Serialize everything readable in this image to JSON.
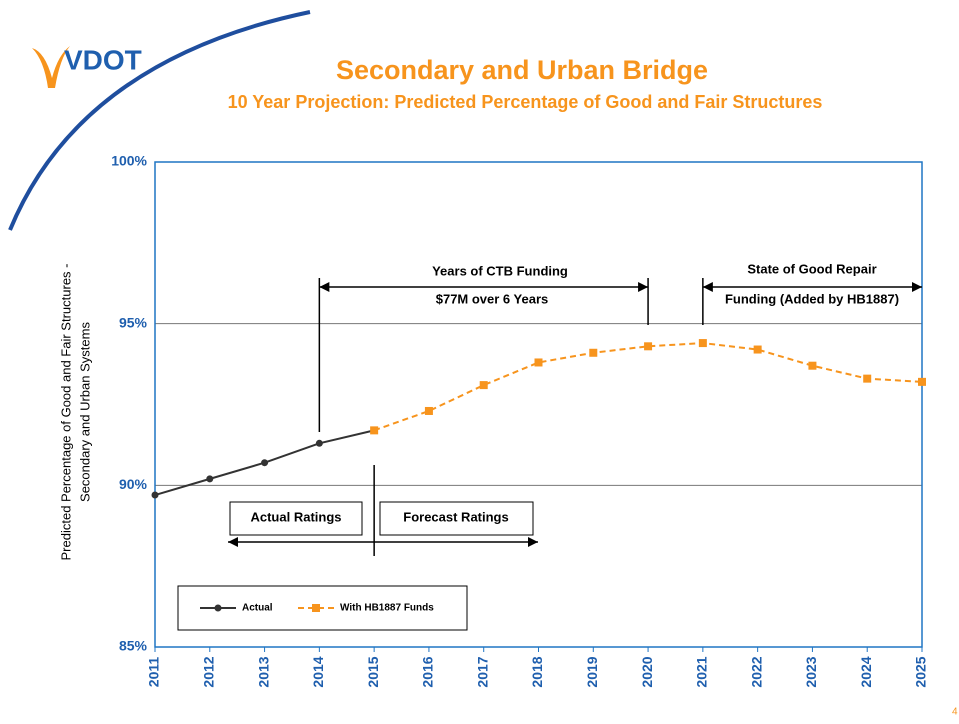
{
  "logo": "VDOT",
  "page_number": "4",
  "chart_data": {
    "type": "line",
    "title": "Secondary and Urban Bridge",
    "subtitle": "10 Year Projection: Predicted Percentage of Good and Fair Structures",
    "y_label": [
      "Predicted Percentage of Good and Fair Structures -",
      "Secondary and Urban Systems"
    ],
    "categories": [
      "2011",
      "2012",
      "2013",
      "2014",
      "2015",
      "2016",
      "2017",
      "2018",
      "2019",
      "2020",
      "2021",
      "2022",
      "2023",
      "2024",
      "2025"
    ],
    "series": [
      {
        "name": "Actual",
        "color": "#333333",
        "values": [
          89.7,
          90.2,
          90.7,
          91.3,
          91.7,
          null,
          null,
          null,
          null,
          null,
          null,
          null,
          null,
          null,
          null
        ]
      },
      {
        "name": "With HB1887 Funds",
        "color": "#f7941d",
        "values": [
          null,
          null,
          null,
          null,
          91.7,
          92.3,
          93.1,
          93.8,
          94.1,
          94.3,
          94.4,
          94.2,
          93.7,
          93.3,
          93.2
        ]
      }
    ],
    "ylim": [
      85,
      100
    ],
    "yticks": [
      {
        "value": 85,
        "label": "85%"
      },
      {
        "value": 90,
        "label": "90%"
      },
      {
        "value": 95,
        "label": "95%"
      },
      {
        "value": 100,
        "label": "100%"
      }
    ],
    "grid": true,
    "annotations": [
      "Years of CTB Funding",
      "$77M over 6 Years",
      "State of Good Repair",
      "Funding (Added by HB1887)",
      "Actual Ratings",
      "Forecast Ratings"
    ]
  }
}
